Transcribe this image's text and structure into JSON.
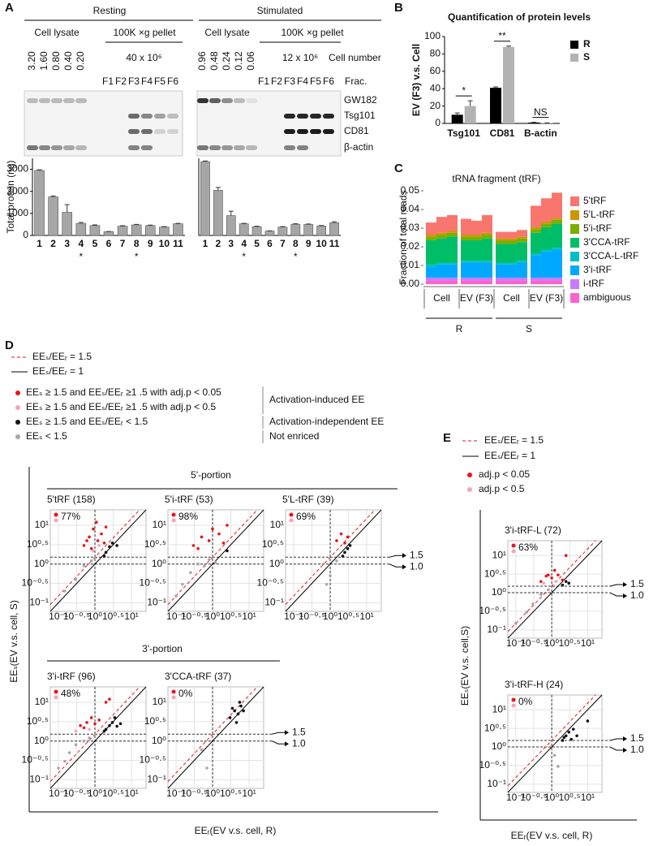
{
  "panel_a": {
    "letter": "A",
    "conditions": [
      {
        "name": "Resting",
        "lysate": "Cell lysate",
        "pellet": "100K ×g pellet",
        "amounts": [
          "3.20",
          "1.60",
          "0.80",
          "0.40",
          "0.20"
        ],
        "pellet_cells": "40 x 10⁶",
        "fractions": [
          "F1",
          "F2",
          "F3",
          "F4",
          "F5",
          "F6"
        ]
      },
      {
        "name": "Stimulated",
        "lysate": "Cell lysate",
        "pellet": "100K ×g pellet",
        "amounts": [
          "0.96",
          "0.48",
          "0.24",
          "0.12",
          "0.06"
        ],
        "pellet_cells": "12 x 10⁶",
        "fractions": [
          "F1",
          "F2",
          "F3",
          "F4",
          "F5",
          "F6"
        ]
      }
    ],
    "cell_number_label": "Cell number",
    "fraction_label": "Frac.",
    "blot_labels": [
      "GW182",
      "Tsg101",
      "CD81",
      "β-actin"
    ],
    "chart_data": [
      {
        "type": "bar",
        "ylabel": "Total protein (ng)",
        "color": "#a6a6a6",
        "categories": [
          "1",
          "2",
          "3",
          "4",
          "5",
          "6",
          "7",
          "8",
          "9",
          "10",
          "11"
        ],
        "values": [
          2950,
          1750,
          1050,
          550,
          450,
          170,
          420,
          480,
          450,
          380,
          530
        ],
        "errors": [
          30,
          40,
          350,
          40,
          30,
          10,
          20,
          20,
          20,
          20,
          20
        ],
        "stars": [
          null,
          null,
          null,
          "*",
          null,
          null,
          null,
          "*",
          null,
          null,
          null
        ],
        "ylim": [
          0,
          3500
        ],
        "yticks": [
          0,
          1000,
          2000,
          3000
        ]
      },
      {
        "type": "bar",
        "color": "#a6a6a6",
        "categories": [
          "1",
          "2",
          "3",
          "4",
          "5",
          "6",
          "7",
          "8",
          "9",
          "10",
          "11"
        ],
        "values": [
          3350,
          2050,
          900,
          530,
          400,
          200,
          380,
          510,
          500,
          430,
          580
        ],
        "errors": [
          30,
          130,
          200,
          20,
          20,
          10,
          20,
          20,
          20,
          20,
          40
        ],
        "stars": [
          null,
          null,
          null,
          "*",
          null,
          null,
          null,
          "*",
          null,
          null,
          null
        ],
        "ylim": [
          0,
          3500
        ]
      }
    ]
  },
  "panel_b": {
    "letter": "B",
    "chart_data": {
      "type": "grouped_bar",
      "title": "Quantification of protein levels",
      "ylabel": "EV (F3) v.s. Cell",
      "categories": [
        "Tsg101",
        "CD81",
        "B-actin"
      ],
      "series": [
        {
          "name": "R",
          "color": "#000000",
          "values": [
            10,
            41,
            1
          ],
          "errors": [
            2,
            1,
            0.3
          ]
        },
        {
          "name": "S",
          "color": "#b3b3b3",
          "values": [
            20,
            88,
            0.5
          ],
          "errors": [
            6,
            1,
            0.2
          ]
        }
      ],
      "significance": [
        "*",
        "**",
        "NS"
      ],
      "ylim": [
        0,
        100
      ],
      "yticks": [
        0,
        20,
        40,
        60,
        80,
        100
      ]
    }
  },
  "panel_c": {
    "letter": "C",
    "chart_data": {
      "type": "stacked_bar",
      "title": "tRNA fragment (tRF)",
      "ylabel": "Fraction of total reads",
      "series": [
        {
          "name": "5'tRF",
          "color": "#f8766d",
          "values": [
            0.0065,
            0.0085,
            0.0085,
            0.0085,
            0.0075,
            0.0095,
            0.0035,
            0.0035,
            0.0035,
            0.0115,
            0.0125,
            0.0135
          ]
        },
        {
          "name": "5'L-tRF",
          "color": "#cd9600",
          "values": [
            0.001,
            0.001,
            0.001,
            0.001,
            0.001,
            0.001,
            0.001,
            0.001,
            0.001,
            0.001,
            0.001,
            0.001
          ]
        },
        {
          "name": "5'i-tRF",
          "color": "#7cae00",
          "values": [
            0.002,
            0.002,
            0.002,
            0.002,
            0.002,
            0.002,
            0.002,
            0.002,
            0.002,
            0.002,
            0.002,
            0.002
          ]
        },
        {
          "name": "3'CCA-tRF",
          "color": "#00be67",
          "values": [
            0.013,
            0.013,
            0.014,
            0.011,
            0.011,
            0.012,
            0.01,
            0.01,
            0.01,
            0.011,
            0.012,
            0.013
          ]
        },
        {
          "name": "3'CCA-L-tRF",
          "color": "#00bfc4",
          "values": [
            0.001,
            0.001,
            0.001,
            0.001,
            0.001,
            0.001,
            0.001,
            0.001,
            0.001,
            0.001,
            0.001,
            0.001
          ]
        },
        {
          "name": "3'i-tRF",
          "color": "#00a9ff",
          "values": [
            0.006,
            0.007,
            0.007,
            0.008,
            0.008,
            0.008,
            0.007,
            0.007,
            0.008,
            0.012,
            0.014,
            0.015
          ]
        },
        {
          "name": "i-tRF",
          "color": "#c77cff",
          "values": [
            0.0015,
            0.0015,
            0.0015,
            0.0015,
            0.0015,
            0.0015,
            0.0015,
            0.0015,
            0.0015,
            0.0015,
            0.0015,
            0.0015
          ]
        },
        {
          "name": "ambiguous",
          "color": "#ff61cc",
          "values": [
            0.002,
            0.002,
            0.002,
            0.002,
            0.002,
            0.002,
            0.002,
            0.002,
            0.002,
            0.002,
            0.002,
            0.002
          ]
        }
      ],
      "groups": [
        "Cell",
        "EV (F3)",
        "Cell",
        "EV (F3)"
      ],
      "conditions": [
        "R",
        "S"
      ],
      "ylim": [
        0,
        0.05
      ],
      "yticks": [
        {
          "value": 0,
          "label": "0.00"
        },
        {
          "value": 0.01,
          "label": "0.01"
        },
        {
          "value": 0.02,
          "label": "0.02"
        },
        {
          "value": 0.03,
          "label": "0.03"
        },
        {
          "value": 0.04,
          "label": "0.04"
        },
        {
          "value": 0.05,
          "label": "0.05"
        }
      ]
    }
  },
  "panel_d": {
    "letter": "D",
    "legend_lines": [
      {
        "label": "EEₛ/EEᵣ = 1.5",
        "color": "#e41a1c",
        "dashed": true
      },
      {
        "label": "EEₛ/EEᵣ = 1",
        "color": "#000000",
        "dashed": false
      }
    ],
    "legend_points": [
      {
        "label": "EEₛ ≥ 1.5 and EEₛ/EEᵣ ≥1 .5 with adj.p < 0.05",
        "color": "#e8151b"
      },
      {
        "label": "EEₛ ≥ 1.5 and EEₛ/EEᵣ ≥1 .5 with adj.p < 0.5",
        "color": "#f6a5b8"
      },
      {
        "label": "EEₛ ≥ 1.5 and EEₛ/EEᵣ < 1.5",
        "color": "#111111"
      },
      {
        "label": "EEₛ < 1.5",
        "color": "#a8a8a8"
      }
    ],
    "legend_classes": [
      "Activation-induced EE",
      "Activation-independent EE",
      "Not enriced"
    ],
    "sections": [
      "5'-portion",
      "3'-portion"
    ],
    "ylabel": "EEₛ(EV v.s. cell, S)",
    "xlabel": "EEᵣ(EV v.s. cell, R)",
    "log_scale": true,
    "xlim": [
      0.06,
      25
    ],
    "ylim": [
      0.06,
      25
    ],
    "ticks": [
      {
        "value": 0.1,
        "label": "10⁻¹"
      },
      {
        "value": 0.3162,
        "label": "10⁻⁰·⁵"
      },
      {
        "value": 1,
        "label": "10⁰"
      },
      {
        "value": 3.162,
        "label": "10⁰·⁵"
      },
      {
        "value": 10,
        "label": "10¹"
      }
    ],
    "threshold_labels": [
      {
        "value": 1.5,
        "label": "1.5"
      },
      {
        "value": 1,
        "label": "1.0"
      }
    ],
    "plots": [
      {
        "title": "5'tRF (158)",
        "percent": "77%",
        "series": [
          {
            "color": "#e8151b",
            "x": [
              0.5,
              0.7,
              0.9,
              1.2,
              1.5,
              2,
              0.8,
              1.1,
              0.6,
              1.8
            ],
            "y": [
              3,
              5,
              8,
              4,
              6,
              9,
              2.5,
              12,
              4,
              3.5
            ]
          },
          {
            "color": "#f6a5b8",
            "x": [
              0.9,
              1.3
            ],
            "y": [
              2.2,
              3
            ]
          },
          {
            "color": "#111111",
            "x": [
              2,
              2.5,
              3,
              4,
              1.8
            ],
            "y": [
              2,
              2.8,
              3.5,
              3,
              1.6
            ]
          },
          {
            "color": "#a8a8a8",
            "x": [
              0.15,
              0.3,
              0.5,
              0.8,
              1
            ],
            "y": [
              0.2,
              0.4,
              0.9,
              1.2,
              1.4
            ]
          }
        ]
      },
      {
        "title": "5'i-tRF (53)",
        "percent": "98%",
        "series": [
          {
            "color": "#e8151b",
            "x": [
              0.3,
              0.5,
              0.8,
              1,
              1.5,
              2,
              2.5,
              0.4
            ],
            "y": [
              3,
              5,
              4,
              8,
              6,
              3.5,
              10,
              2.5
            ]
          },
          {
            "color": "#111111",
            "x": [
              2.5
            ],
            "y": [
              2.2
            ]
          },
          {
            "color": "#a8a8a8",
            "x": [
              0.1,
              0.15,
              0.25,
              0.4,
              0.6,
              0.8,
              1.2
            ],
            "y": [
              0.15,
              0.3,
              0.6,
              1,
              0.9,
              1.3,
              1.1
            ]
          }
        ]
      },
      {
        "title": "5'L-tRF (39)",
        "percent": "69%",
        "series": [
          {
            "color": "#e8151b",
            "x": [
              1.5,
              2,
              2.5,
              3
            ],
            "y": [
              4,
              6,
              3.5,
              5
            ]
          },
          {
            "color": "#111111",
            "x": [
              2.5,
              3,
              3.5,
              2.2
            ],
            "y": [
              2,
              2.5,
              3,
              1.6
            ]
          },
          {
            "color": "#a8a8a8",
            "x": [
              1,
              1.5,
              0.8
            ],
            "y": [
              0.5,
              1.2,
              0.3
            ]
          }
        ]
      },
      {
        "title": "3'i-tRF (96)",
        "percent": "48%",
        "series": [
          {
            "color": "#e8151b",
            "x": [
              0.4,
              0.6,
              0.8,
              1,
              1.3,
              0.5,
              2,
              2.5
            ],
            "y": [
              2.5,
              3,
              4,
              2.8,
              3.5,
              2.2,
              10,
              12
            ]
          },
          {
            "color": "#f6a5b8",
            "x": [
              0.3,
              0.7
            ],
            "y": [
              1.8,
              2
            ]
          },
          {
            "color": "#111111",
            "x": [
              2,
              2.5,
              3,
              4,
              5,
              1.8,
              3.5
            ],
            "y": [
              2,
              2.5,
              3,
              2.4,
              2.8,
              1.8,
              4
            ]
          },
          {
            "color": "#a8a8a8",
            "x": [
              0.1,
              0.15,
              0.2,
              0.3,
              0.5,
              0.7,
              1
            ],
            "y": [
              0.2,
              0.3,
              0.5,
              0.8,
              1,
              1.2,
              1.4
            ]
          }
        ]
      },
      {
        "title": "3'CCA-tRF (37)",
        "percent": "0%",
        "series": [
          {
            "color": "#111111",
            "x": [
              3,
              4,
              5,
              6,
              4.5,
              7,
              3.5,
              5.5
            ],
            "y": [
              4,
              6,
              5,
              8,
              3,
              6,
              7,
              10
            ]
          },
          {
            "color": "#a8a8a8",
            "x": [
              0.5,
              0.7
            ],
            "y": [
              0.6,
              0.2
            ]
          }
        ]
      }
    ]
  },
  "panel_e": {
    "letter": "E",
    "legend_lines": [
      {
        "label": "EEₛ/EEᵣ = 1.5",
        "color": "#e41a1c",
        "dashed": true
      },
      {
        "label": "EEₛ/EEᵣ = 1",
        "color": "#000000",
        "dashed": false
      }
    ],
    "legend_points": [
      {
        "label": "adj.p < 0.05",
        "color": "#e8151b"
      },
      {
        "label": "adj.p < 0.5",
        "color": "#f6a5b8"
      }
    ],
    "ylabel": "EEₛ(EV v.s. cell,S)",
    "xlabel": "EEᵣ(EV v.s. cell, R)",
    "log_scale": true,
    "xlim": [
      0.06,
      25
    ],
    "ylim": [
      0.06,
      25
    ],
    "ticks": [
      {
        "value": 0.1,
        "label": "10⁻¹"
      },
      {
        "value": 0.3162,
        "label": "10⁻⁰·⁵"
      },
      {
        "value": 1,
        "label": "10⁰"
      },
      {
        "value": 3.162,
        "label": "10⁰·⁵"
      },
      {
        "value": 10,
        "label": "10¹"
      }
    ],
    "threshold_labels": [
      {
        "value": 1.5,
        "label": "1.5"
      },
      {
        "value": 1,
        "label": "1.0"
      }
    ],
    "plots": [
      {
        "title": "3'i-tRF-L (72)",
        "percent": "63%",
        "series": [
          {
            "color": "#e8151b",
            "x": [
              0.5,
              0.8,
              1,
              1.2,
              1.5,
              2,
              0.7,
              2.5
            ],
            "y": [
              2,
              3,
              2.5,
              4,
              3,
              2.2,
              2.8,
              10
            ]
          },
          {
            "color": "#f6a5b8",
            "x": [
              0.6,
              1.3
            ],
            "y": [
              1.8,
              2
            ]
          },
          {
            "color": "#111111",
            "x": [
              2,
              2.5,
              3
            ],
            "y": [
              1.6,
              2,
              1.8
            ]
          },
          {
            "color": "#a8a8a8",
            "x": [
              0.1,
              0.2,
              0.3,
              0.5,
              0.8
            ],
            "y": [
              0.15,
              0.3,
              0.5,
              0.9,
              1.2
            ]
          }
        ]
      },
      {
        "title": "3'i-tRF-H (24)",
        "percent": "0%",
        "series": [
          {
            "color": "#111111",
            "x": [
              2,
              2.5,
              3,
              4,
              5,
              2.2,
              3.5,
              10
            ],
            "y": [
              1.5,
              2,
              2.5,
              3,
              2,
              1.8,
              1.6,
              5
            ]
          },
          {
            "color": "#a8a8a8",
            "x": [
              1.5,
              1.2
            ],
            "y": [
              0.3,
              0.6
            ]
          }
        ]
      }
    ]
  }
}
